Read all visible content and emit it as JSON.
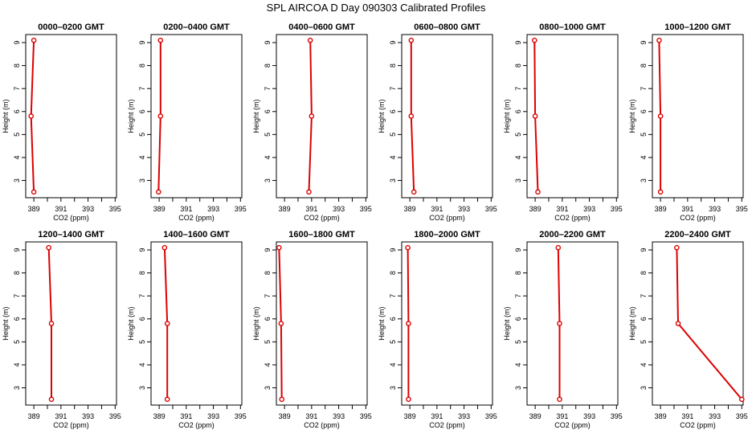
{
  "figure": {
    "title": "SPL AIRCOA D  Day 090303  Calibrated Profiles"
  },
  "colors": {
    "series": "#dd0000",
    "axes": "#000000",
    "background": "#ffffff"
  },
  "chart_data": [
    {
      "type": "line",
      "title": "0000–0200 GMT",
      "xlabel": "CO2 (ppm)",
      "ylabel": "Height (m)",
      "xlim": [
        388.4,
        395.1
      ],
      "ylim": [
        2.25,
        9.35
      ],
      "xticks": [
        "389",
        "391",
        "393",
        "395"
      ],
      "yticks": [
        "3",
        "4",
        "5",
        "6",
        "7",
        "8",
        "9"
      ],
      "x": [
        389.0,
        388.8,
        389.0
      ],
      "y": [
        2.5,
        5.8,
        9.1
      ]
    },
    {
      "type": "line",
      "title": "0200–0400 GMT",
      "xlabel": "CO2 (ppm)",
      "ylabel": "Height (m)",
      "xlim": [
        388.4,
        395.1
      ],
      "ylim": [
        2.25,
        9.35
      ],
      "xticks": [
        "389",
        "391",
        "393",
        "395"
      ],
      "yticks": [
        "3",
        "4",
        "5",
        "6",
        "7",
        "8",
        "9"
      ],
      "x": [
        388.95,
        389.1,
        389.1
      ],
      "y": [
        2.5,
        5.8,
        9.1
      ]
    },
    {
      "type": "line",
      "title": "0400–0600 GMT",
      "xlabel": "CO2 (ppm)",
      "ylabel": "Height (m)",
      "xlim": [
        388.4,
        395.1
      ],
      "ylim": [
        2.25,
        9.35
      ],
      "xticks": [
        "389",
        "391",
        "393",
        "395"
      ],
      "yticks": [
        "3",
        "4",
        "5",
        "6",
        "7",
        "8",
        "9"
      ],
      "x": [
        390.8,
        391.0,
        390.9
      ],
      "y": [
        2.5,
        5.8,
        9.1
      ]
    },
    {
      "type": "line",
      "title": "0600–0800 GMT",
      "xlabel": "CO2 (ppm)",
      "ylabel": "Height (m)",
      "xlim": [
        388.4,
        395.1
      ],
      "ylim": [
        2.25,
        9.35
      ],
      "xticks": [
        "389",
        "391",
        "393",
        "395"
      ],
      "yticks": [
        "3",
        "4",
        "5",
        "6",
        "7",
        "8",
        "9"
      ],
      "x": [
        389.3,
        389.1,
        389.1
      ],
      "y": [
        2.5,
        5.8,
        9.1
      ]
    },
    {
      "type": "line",
      "title": "0800–1000 GMT",
      "xlabel": "CO2 (ppm)",
      "ylabel": "Height (m)",
      "xlim": [
        388.4,
        395.1
      ],
      "ylim": [
        2.25,
        9.35
      ],
      "xticks": [
        "389",
        "391",
        "393",
        "395"
      ],
      "yticks": [
        "3",
        "4",
        "5",
        "6",
        "7",
        "8",
        "9"
      ],
      "x": [
        389.2,
        389.0,
        388.95
      ],
      "y": [
        2.5,
        5.8,
        9.1
      ]
    },
    {
      "type": "line",
      "title": "1000–1200 GMT",
      "xlabel": "CO2 (ppm)",
      "ylabel": "Height (m)",
      "xlim": [
        388.4,
        395.1
      ],
      "ylim": [
        2.25,
        9.35
      ],
      "xticks": [
        "389",
        "391",
        "393",
        "395"
      ],
      "yticks": [
        "3",
        "4",
        "5",
        "6",
        "7",
        "8",
        "9"
      ],
      "x": [
        389.0,
        389.0,
        388.9
      ],
      "y": [
        2.5,
        5.8,
        9.1
      ]
    },
    {
      "type": "line",
      "title": "1200–1400 GMT",
      "xlabel": "CO2 (ppm)",
      "ylabel": "Height (m)",
      "xlim": [
        388.4,
        395.1
      ],
      "ylim": [
        2.25,
        9.35
      ],
      "xticks": [
        "389",
        "391",
        "393",
        "395"
      ],
      "yticks": [
        "3",
        "4",
        "5",
        "6",
        "7",
        "8",
        "9"
      ],
      "x": [
        390.3,
        390.3,
        390.1
      ],
      "y": [
        2.5,
        5.8,
        9.1
      ]
    },
    {
      "type": "line",
      "title": "1400–1600 GMT",
      "xlabel": "CO2 (ppm)",
      "ylabel": "Height (m)",
      "xlim": [
        388.4,
        395.1
      ],
      "ylim": [
        2.25,
        9.35
      ],
      "xticks": [
        "389",
        "391",
        "393",
        "395"
      ],
      "yticks": [
        "3",
        "4",
        "5",
        "6",
        "7",
        "8",
        "9"
      ],
      "x": [
        389.6,
        389.6,
        389.4
      ],
      "y": [
        2.5,
        5.8,
        9.1
      ]
    },
    {
      "type": "line",
      "title": "1600–1800 GMT",
      "xlabel": "CO2 (ppm)",
      "ylabel": "Height (m)",
      "xlim": [
        388.4,
        395.1
      ],
      "ylim": [
        2.25,
        9.35
      ],
      "xticks": [
        "389",
        "391",
        "393",
        "395"
      ],
      "yticks": [
        "3",
        "4",
        "5",
        "6",
        "7",
        "8",
        "9"
      ],
      "x": [
        388.8,
        388.75,
        388.6
      ],
      "y": [
        2.5,
        5.8,
        9.1
      ]
    },
    {
      "type": "line",
      "title": "1800–2000 GMT",
      "xlabel": "CO2 (ppm)",
      "ylabel": "Height (m)",
      "xlim": [
        388.4,
        395.1
      ],
      "ylim": [
        2.25,
        9.35
      ],
      "xticks": [
        "389",
        "391",
        "393",
        "395"
      ],
      "yticks": [
        "3",
        "4",
        "5",
        "6",
        "7",
        "8",
        "9"
      ],
      "x": [
        388.9,
        388.9,
        388.85
      ],
      "y": [
        2.5,
        5.8,
        9.1
      ]
    },
    {
      "type": "line",
      "title": "2000–2200 GMT",
      "xlabel": "CO2 (ppm)",
      "ylabel": "Height (m)",
      "xlim": [
        388.4,
        395.1
      ],
      "ylim": [
        2.25,
        9.35
      ],
      "xticks": [
        "389",
        "391",
        "393",
        "395"
      ],
      "yticks": [
        "3",
        "4",
        "5",
        "6",
        "7",
        "8",
        "9"
      ],
      "x": [
        390.8,
        390.8,
        390.7
      ],
      "y": [
        2.5,
        5.8,
        9.1
      ]
    },
    {
      "type": "line",
      "title": "2200–2400 GMT",
      "xlabel": "CO2 (ppm)",
      "ylabel": "Height (m)",
      "xlim": [
        388.4,
        395.1
      ],
      "ylim": [
        2.25,
        9.35
      ],
      "xticks": [
        "389",
        "391",
        "393",
        "395"
      ],
      "yticks": [
        "3",
        "4",
        "5",
        "6",
        "7",
        "8",
        "9"
      ],
      "x": [
        395.0,
        390.3,
        390.2
      ],
      "y": [
        2.5,
        5.8,
        9.1
      ]
    }
  ]
}
